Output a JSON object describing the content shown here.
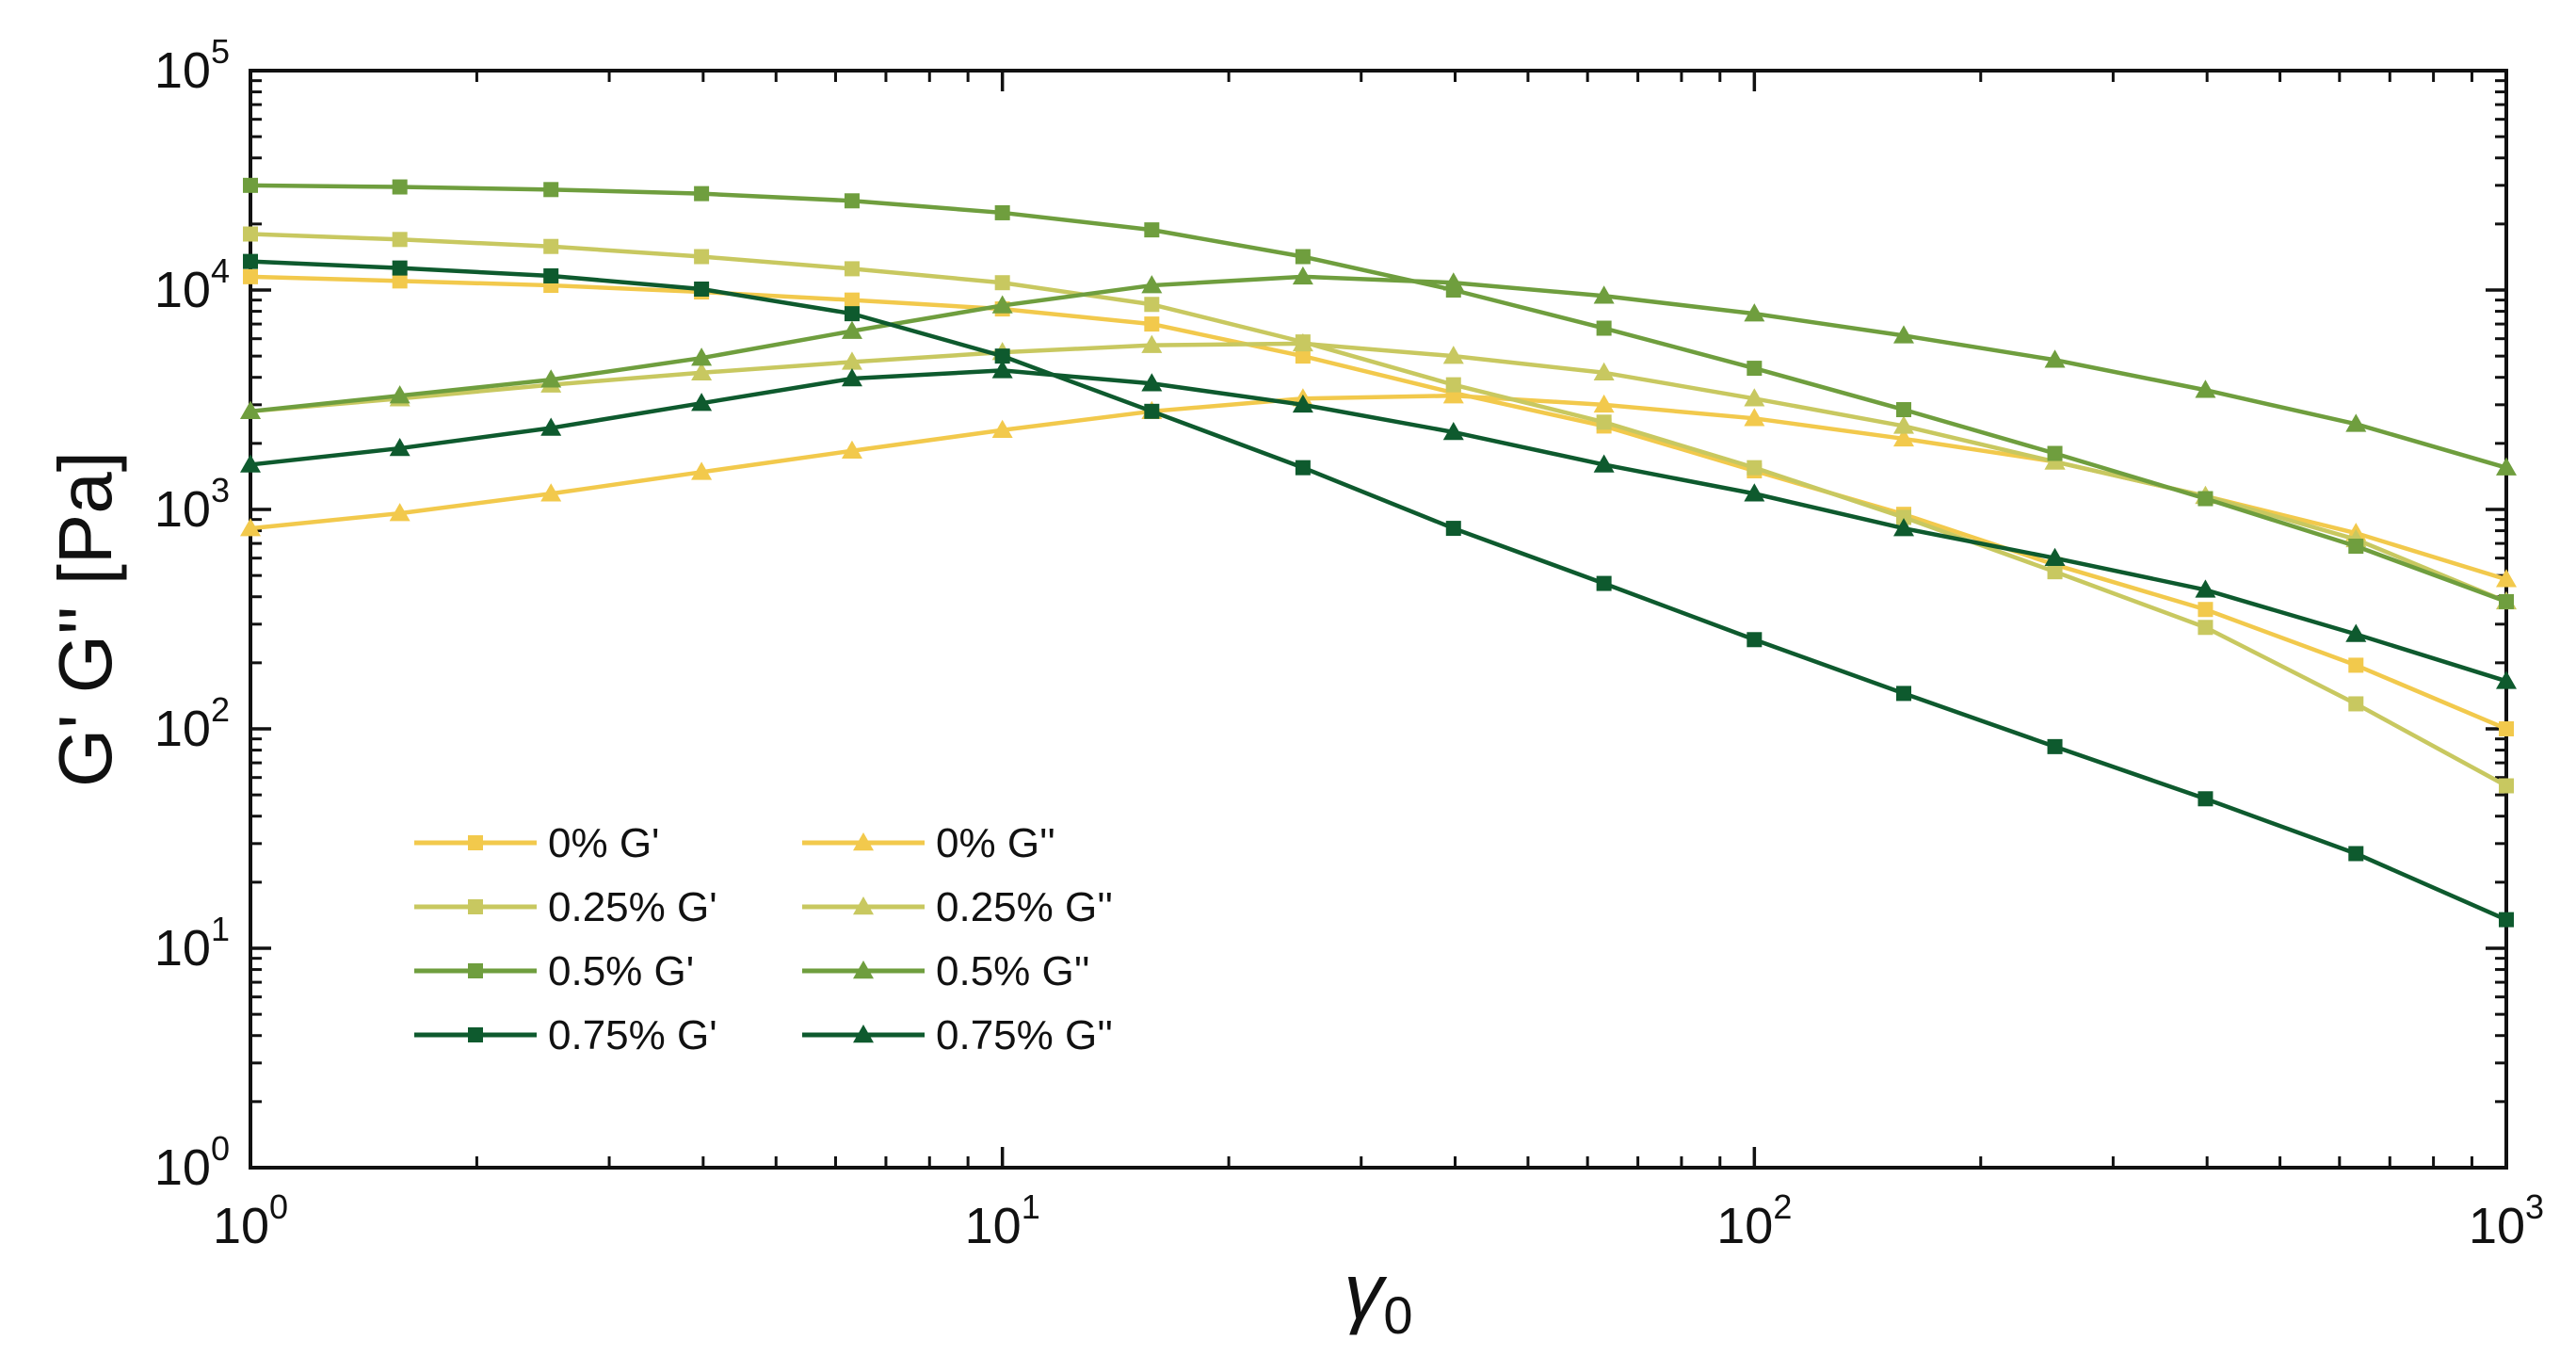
{
  "chart_data": {
    "type": "line",
    "x_scale": "log",
    "y_scale": "log",
    "xlabel_base": "γ",
    "xlabel_sub": "0",
    "ylabel": "G' G'' [Pa]",
    "xlim": [
      1,
      1000
    ],
    "ylim": [
      1,
      100000
    ],
    "x_ticks": [
      {
        "value": 1,
        "base": "10",
        "exp": "0"
      },
      {
        "value": 10,
        "base": "10",
        "exp": "1"
      },
      {
        "value": 100,
        "base": "10",
        "exp": "2"
      },
      {
        "value": 1000,
        "base": "10",
        "exp": "3"
      }
    ],
    "y_ticks": [
      {
        "value": 1,
        "base": "10",
        "exp": "0"
      },
      {
        "value": 10,
        "base": "10",
        "exp": "1"
      },
      {
        "value": 100,
        "base": "10",
        "exp": "2"
      },
      {
        "value": 1000,
        "base": "10",
        "exp": "3"
      },
      {
        "value": 10000,
        "base": "10",
        "exp": "4"
      },
      {
        "value": 100000,
        "base": "10",
        "exp": "5"
      }
    ],
    "legend_position": "bottom-left",
    "x": [
      1,
      1.58,
      2.51,
      3.98,
      6.31,
      10,
      15.8,
      25.1,
      39.8,
      63.1,
      100,
      158,
      251,
      398,
      631,
      1000
    ],
    "series": [
      {
        "name": "0% G'",
        "color": "#f2c94c",
        "marker": "square",
        "values": [
          11500,
          11000,
          10500,
          9800,
          9000,
          8200,
          7000,
          5000,
          3400,
          2400,
          1500,
          950,
          560,
          350,
          195,
          100
        ]
      },
      {
        "name": "0% G''",
        "color": "#f2c94c",
        "marker": "triangle",
        "values": [
          820,
          960,
          1180,
          1480,
          1850,
          2300,
          2800,
          3200,
          3300,
          3000,
          2600,
          2100,
          1650,
          1150,
          780,
          480
        ]
      },
      {
        "name": "0.25% G'",
        "color": "#c8c860",
        "marker": "square",
        "values": [
          18000,
          17000,
          15800,
          14200,
          12500,
          10800,
          8600,
          5800,
          3700,
          2500,
          1550,
          920,
          520,
          290,
          130,
          55
        ]
      },
      {
        "name": "0.25% G''",
        "color": "#c8c860",
        "marker": "triangle",
        "values": [
          2800,
          3200,
          3700,
          4200,
          4700,
          5200,
          5600,
          5700,
          5000,
          4200,
          3200,
          2400,
          1650,
          1150,
          730,
          380
        ]
      },
      {
        "name": "0.5% G'",
        "color": "#6f9e3e",
        "marker": "square",
        "values": [
          30000,
          29500,
          28700,
          27500,
          25500,
          22500,
          18800,
          14200,
          10000,
          6700,
          4400,
          2850,
          1800,
          1120,
          680,
          380
        ]
      },
      {
        "name": "0.5% G''",
        "color": "#6f9e3e",
        "marker": "triangle",
        "values": [
          2800,
          3300,
          3900,
          4900,
          6500,
          8500,
          10500,
          11500,
          10800,
          9400,
          7800,
          6200,
          4800,
          3500,
          2450,
          1550
        ]
      },
      {
        "name": "0.75% G'",
        "color": "#0e5a2e",
        "marker": "square",
        "values": [
          13500,
          12600,
          11600,
          10100,
          7800,
          5000,
          2800,
          1550,
          820,
          460,
          255,
          145,
          83,
          48,
          27,
          13.5
        ]
      },
      {
        "name": "0.75% G''",
        "color": "#0e5a2e",
        "marker": "triangle",
        "values": [
          1600,
          1900,
          2350,
          3050,
          3950,
          4300,
          3750,
          3000,
          2250,
          1600,
          1180,
          820,
          600,
          430,
          270,
          165
        ]
      }
    ]
  }
}
